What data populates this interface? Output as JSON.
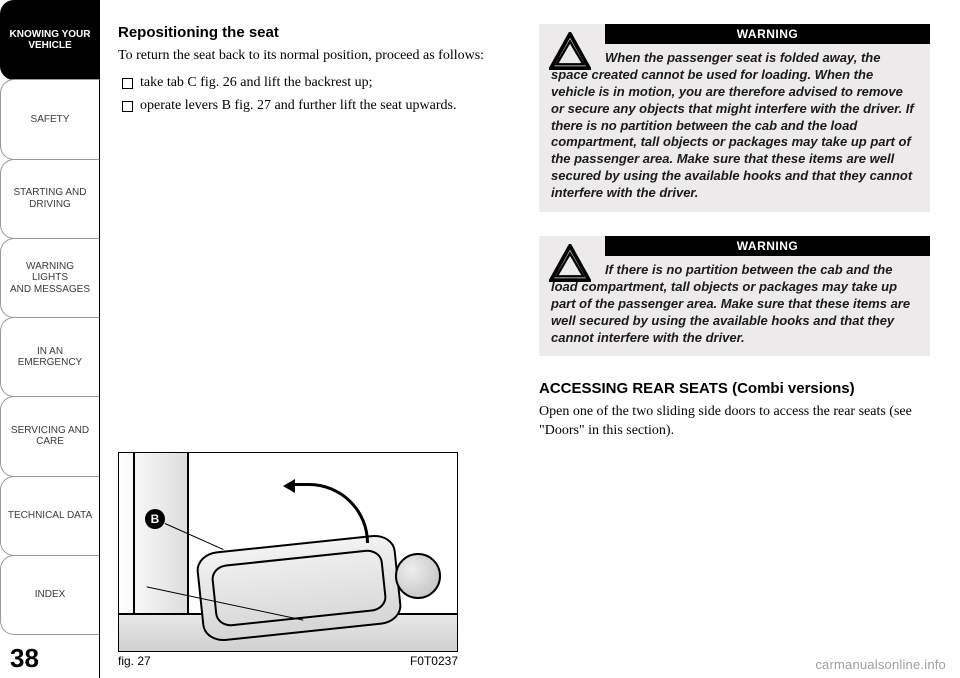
{
  "sidebar": {
    "tabs": [
      {
        "label": "KNOWING YOUR\nVEHICLE",
        "active": true
      },
      {
        "label": "SAFETY",
        "active": false
      },
      {
        "label": "STARTING AND\nDRIVING",
        "active": false
      },
      {
        "label": "WARNING LIGHTS\nAND MESSAGES",
        "active": false
      },
      {
        "label": "IN AN EMERGENCY",
        "active": false
      },
      {
        "label": "SERVICING AND\nCARE",
        "active": false
      },
      {
        "label": "TECHNICAL DATA",
        "active": false
      },
      {
        "label": "INDEX",
        "active": false
      }
    ]
  },
  "page_number": "38",
  "left_column": {
    "heading": "Repositioning the seat",
    "intro": "To return the seat back to its normal position, proceed as follows:",
    "bullets": [
      "take tab C fig. 26 and lift the backrest up;",
      "operate levers B fig. 27 and further lift the seat upwards."
    ],
    "figure": {
      "caption_left": "fig. 27",
      "caption_right": "F0T0237",
      "label_b": "B"
    }
  },
  "right_column": {
    "warning_label": "WARNING",
    "warning1": "When the passenger seat is folded away, the space created cannot be used for loading. When the vehicle is in motion, you are therefore advised to remove or secure any objects that might interfere with the driver. If there is no partition between the cab and the load compartment, tall objects or packages may take up part of the passenger area. Make sure that these items are well secured by using the available hooks and that they cannot interfere with the driver.",
    "warning2": "If there is no partition between the cab and the load compartment, tall objects or packages may take up part of the passenger area. Make sure that these items are well secured by using the available hooks and that they cannot interfere with the driver.",
    "section_heading": "ACCESSING REAR SEATS (Combi versions)",
    "section_body": "Open one of the two sliding side doors to access the rear seats (see \"Doors\" in this section)."
  },
  "watermark": "carmanualsonline.info",
  "colors": {
    "page_bg": "#ffffff",
    "tab_active_bg": "#000000",
    "tab_active_fg": "#ffffff",
    "tab_inactive_fg": "#3a3a3a",
    "warning_bg": "#eceaeb",
    "warning_header_bg": "#000000",
    "warning_header_fg": "#ffffff",
    "watermark_color": "rgba(80,80,80,0.55)"
  }
}
